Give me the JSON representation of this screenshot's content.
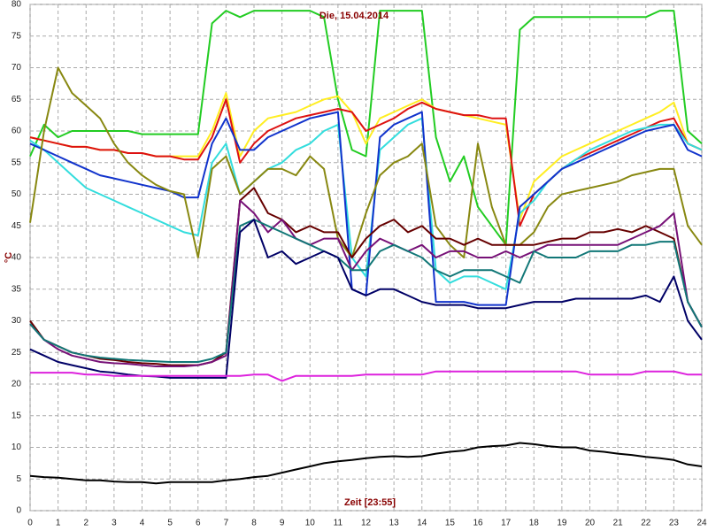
{
  "chart_data": {
    "type": "line",
    "title": "Die, 15.04.2014",
    "xlabel": "Zeit [23:55]",
    "ylabel": "°C",
    "x": [
      0,
      0.5,
      1,
      1.5,
      2,
      2.5,
      3,
      3.5,
      4,
      4.5,
      5,
      5.5,
      6,
      6.5,
      7,
      7.5,
      8,
      8.5,
      9,
      9.5,
      10,
      10.5,
      11,
      11.5,
      12,
      12.5,
      13,
      13.5,
      14,
      14.5,
      15,
      15.5,
      16,
      16.5,
      17,
      17.5,
      18,
      18.5,
      19,
      19.5,
      20,
      20.5,
      21,
      21.5,
      22,
      22.5,
      23,
      23.5,
      24
    ],
    "xlim": [
      0,
      24
    ],
    "xticks": [
      0,
      1,
      2,
      3,
      4,
      5,
      6,
      7,
      8,
      9,
      10,
      11,
      12,
      13,
      14,
      15,
      16,
      17,
      18,
      19,
      20,
      21,
      22,
      23,
      24
    ],
    "ylim": [
      0,
      80
    ],
    "yticks": [
      0,
      5,
      10,
      15,
      20,
      25,
      30,
      35,
      40,
      45,
      50,
      55,
      60,
      65,
      70,
      75,
      80
    ],
    "grid": true,
    "series": [
      {
        "color": "#22cc22",
        "values": [
          56,
          61,
          59,
          60,
          60,
          60,
          60,
          60,
          59.5,
          59.5,
          59.5,
          59.5,
          59.5,
          77,
          79,
          78,
          79,
          79,
          79,
          79,
          79,
          78,
          65,
          57,
          56,
          79,
          79,
          79,
          79,
          59,
          52,
          56,
          48,
          45,
          42,
          76,
          78,
          78,
          78,
          78,
          78,
          78,
          78,
          78,
          78,
          79,
          79,
          60,
          58
        ]
      },
      {
        "color": "#ffee22",
        "values": [
          59,
          58.5,
          58,
          57.5,
          57.5,
          57,
          57,
          56.5,
          56.5,
          56,
          56,
          56,
          56,
          60,
          66,
          56,
          60,
          62,
          62.5,
          63,
          64,
          65,
          65.5,
          63,
          58,
          62,
          63,
          64,
          65,
          63.5,
          63,
          62.5,
          62,
          61.5,
          61,
          46,
          52,
          54,
          56,
          57,
          58,
          59,
          60,
          61,
          62,
          63,
          64.5,
          58,
          57
        ]
      },
      {
        "color": "#dd1111",
        "values": [
          59,
          58.5,
          58,
          57.5,
          57.5,
          57,
          57,
          56.5,
          56.5,
          56,
          56,
          55.5,
          55.5,
          59,
          65,
          55,
          58,
          60,
          61,
          62,
          62.5,
          63,
          63.5,
          63,
          60,
          61,
          62,
          63.5,
          64.5,
          63.5,
          63,
          62.5,
          62.5,
          62,
          62,
          45,
          50,
          52,
          54,
          55.5,
          56.5,
          57.5,
          58.5,
          59.5,
          60.5,
          61.5,
          62,
          58,
          57
        ]
      },
      {
        "color": "#33dddd",
        "values": [
          58.5,
          57,
          55,
          53,
          51,
          50,
          49,
          48,
          47,
          46,
          45,
          44,
          43.5,
          55,
          58,
          50,
          52,
          54,
          55,
          57,
          58,
          60,
          61,
          40,
          37,
          57,
          59,
          61,
          62,
          38,
          36,
          37,
          37,
          36,
          35,
          47,
          49,
          52,
          54,
          55.5,
          57,
          58,
          59,
          60,
          60.5,
          61,
          61,
          58,
          57
        ]
      },
      {
        "color": "#1133cc",
        "values": [
          58,
          57,
          56,
          55,
          54,
          53,
          52.5,
          52,
          51.5,
          51,
          50.5,
          49.5,
          49.5,
          58,
          62,
          57,
          57,
          59,
          60,
          61,
          62,
          62.5,
          63,
          35,
          34,
          59,
          61,
          62,
          63,
          33,
          33,
          33,
          32.5,
          32.5,
          32.5,
          48,
          50,
          52,
          54,
          55,
          56,
          57,
          58,
          59,
          60,
          60.5,
          61,
          57,
          56
        ]
      },
      {
        "color": "#888811",
        "values": [
          45.5,
          60,
          70,
          66,
          64,
          62,
          58,
          55,
          53,
          51.5,
          50.5,
          50,
          40,
          54,
          56,
          50,
          52,
          54,
          54,
          53,
          56,
          54,
          43,
          40,
          47,
          53,
          55,
          56,
          58,
          45,
          42,
          40,
          58,
          48,
          42,
          42,
          44,
          48,
          50,
          50.5,
          51,
          51.5,
          52,
          53,
          53.5,
          54,
          54,
          45,
          42
        ]
      },
      {
        "color": "#660000",
        "values": [
          30,
          27,
          26,
          25,
          24.5,
          24,
          23.8,
          23.5,
          23.3,
          23.2,
          23,
          23,
          23,
          23.5,
          25,
          49,
          51,
          47,
          46,
          44,
          45,
          44,
          44,
          40,
          43,
          45,
          46,
          44,
          45,
          43,
          43,
          42,
          43,
          42,
          42,
          42,
          42,
          42.5,
          43,
          43,
          44,
          44,
          44.5,
          44,
          45,
          44,
          43,
          33,
          29
        ]
      },
      {
        "color": "#771177",
        "values": [
          29.5,
          27,
          25.5,
          24.5,
          24,
          23.5,
          23.3,
          23.2,
          23,
          22.8,
          22.8,
          22.8,
          23,
          23.5,
          24.5,
          49,
          47,
          44,
          46,
          43,
          42,
          43,
          43,
          38,
          41,
          43,
          42,
          41,
          42,
          40,
          41,
          41,
          40,
          40,
          41,
          40,
          41,
          42,
          42,
          42,
          42,
          42,
          42,
          43,
          44,
          45,
          47,
          33,
          29
        ]
      },
      {
        "color": "#117777",
        "values": [
          29.5,
          27,
          26,
          25,
          24.5,
          24.2,
          24,
          23.8,
          23.7,
          23.6,
          23.5,
          23.5,
          23.5,
          24,
          25,
          45,
          46,
          45,
          44,
          43,
          42,
          41,
          40,
          38,
          38,
          41,
          42,
          41,
          40,
          38,
          37,
          38,
          38,
          38,
          37,
          36,
          41,
          40,
          40,
          40,
          41,
          41,
          41,
          42,
          42,
          42.5,
          42.5,
          33,
          29
        ]
      },
      {
        "color": "#000066",
        "values": [
          25.5,
          24.5,
          23.5,
          23,
          22.5,
          22,
          21.8,
          21.5,
          21.3,
          21.2,
          21,
          21,
          21,
          21,
          21,
          44,
          46,
          40,
          41,
          39,
          40,
          41,
          40,
          35,
          34,
          35,
          35,
          34,
          33,
          32.5,
          32.5,
          32.5,
          32,
          32,
          32,
          32.5,
          33,
          33,
          33,
          33.5,
          33.5,
          33.5,
          33.5,
          33.5,
          34,
          33,
          37,
          30,
          27
        ]
      },
      {
        "color": "#dd22dd",
        "values": [
          21.8,
          21.8,
          21.8,
          21.8,
          21.5,
          21.5,
          21.3,
          21.3,
          21.3,
          21.3,
          21.3,
          21.3,
          21.3,
          21.3,
          21.3,
          21.3,
          21.5,
          21.5,
          20.5,
          21.3,
          21.3,
          21.3,
          21.3,
          21.3,
          21.5,
          21.5,
          21.5,
          21.5,
          21.5,
          22,
          22,
          22,
          22,
          22,
          22,
          22,
          22,
          22,
          22,
          22,
          21.5,
          21.5,
          21.5,
          21.5,
          22,
          22,
          22,
          21.5,
          21.5
        ]
      },
      {
        "color": "#000000",
        "values": [
          5.5,
          5.3,
          5.2,
          5,
          4.8,
          4.8,
          4.6,
          4.5,
          4.5,
          4.3,
          4.5,
          4.5,
          4.5,
          4.5,
          4.8,
          5,
          5.3,
          5.5,
          6,
          6.5,
          7,
          7.5,
          7.8,
          8,
          8.3,
          8.5,
          8.6,
          8.5,
          8.6,
          9,
          9.3,
          9.5,
          10,
          10.2,
          10.3,
          10.7,
          10.5,
          10.2,
          10,
          10,
          9.5,
          9.3,
          9,
          8.8,
          8.5,
          8.3,
          8,
          7.3,
          7
        ]
      }
    ]
  }
}
